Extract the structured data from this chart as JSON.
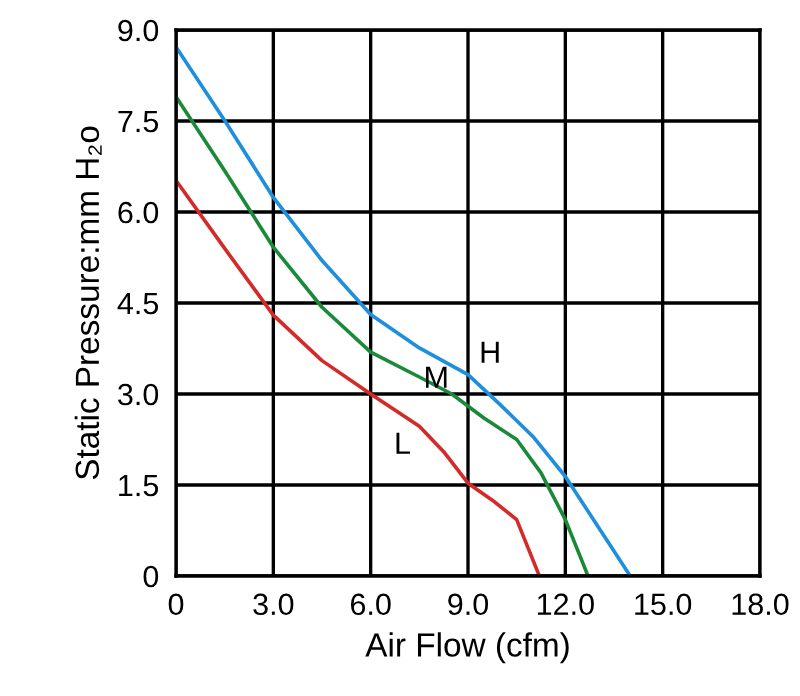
{
  "chart_data": {
    "type": "line",
    "xlabel": "Air Flow (cfm)",
    "ylabel": "Static Pressure:mm H₂o",
    "xlim": [
      0,
      18
    ],
    "ylim": [
      0,
      9
    ],
    "xticks": [
      0,
      {
        "value": 3,
        "label": "3.0"
      },
      {
        "value": 6,
        "label": "6.0"
      },
      {
        "value": 9,
        "label": "9.0"
      },
      {
        "value": 12,
        "label": "12.0"
      },
      {
        "value": 15,
        "label": "15.0"
      },
      {
        "value": 18,
        "label": "18.0"
      }
    ],
    "yticks": [
      0,
      1.5,
      {
        "value": 3,
        "label": "3.0"
      },
      4.5,
      {
        "value": 6,
        "label": "6.0"
      },
      7.5,
      {
        "value": 9,
        "label": "9.0"
      }
    ],
    "grid": true,
    "legend": false,
    "marker": "none",
    "line_style": "solid",
    "series": [
      {
        "name": "H",
        "color": "#1e8fdc",
        "x": [
          0,
          1.5,
          3,
          4.5,
          6,
          7.5,
          9,
          10,
          11,
          12,
          13,
          14
        ],
        "values": [
          8.72,
          7.51,
          6.24,
          5.2,
          4.31,
          3.76,
          3.32,
          2.82,
          2.3,
          1.64,
          0.82,
          0
        ]
      },
      {
        "name": "M",
        "color": "#1a8a3a",
        "x": [
          0,
          1.5,
          3,
          4.5,
          6,
          7.5,
          8.5,
          9.5,
          10.5,
          11.25,
          12,
          12.7
        ],
        "values": [
          7.9,
          6.68,
          5.42,
          4.43,
          3.69,
          3.28,
          3.0,
          2.6,
          2.25,
          1.7,
          0.93,
          0
        ]
      },
      {
        "name": "L",
        "color": "#d42a2a",
        "x": [
          0,
          1.5,
          3,
          4.5,
          6,
          7.5,
          8.25,
          9,
          9.75,
          10.5,
          11.2
        ],
        "values": [
          6.52,
          5.4,
          4.3,
          3.55,
          3.0,
          2.47,
          2.05,
          1.53,
          1.25,
          0.93,
          0
        ]
      }
    ]
  }
}
